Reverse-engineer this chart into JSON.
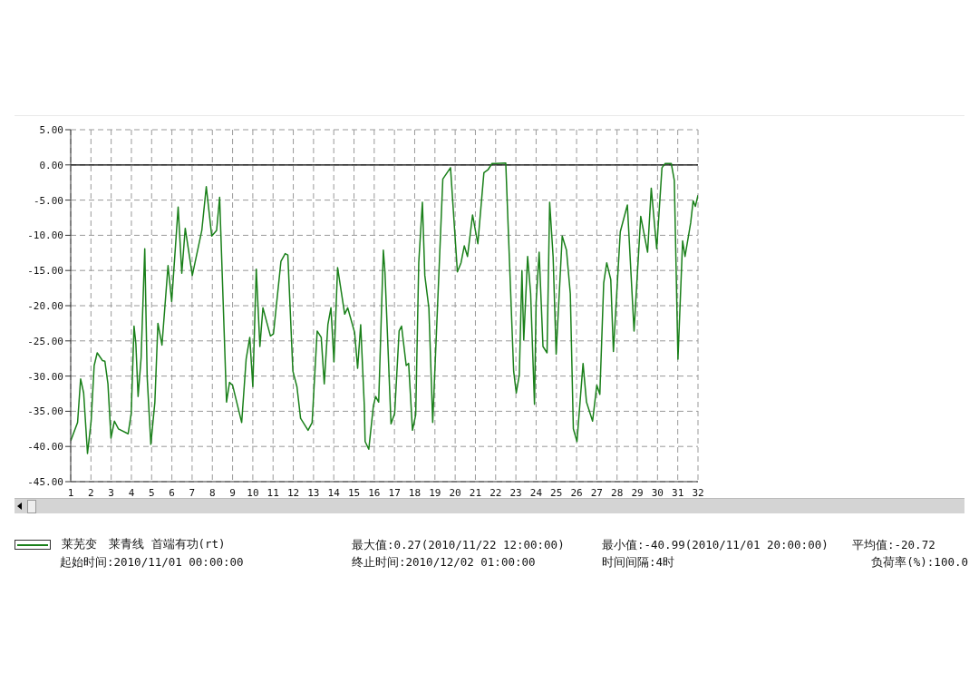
{
  "chart_data": {
    "type": "line",
    "x": [
      1.0,
      1.34,
      1.49,
      1.64,
      1.83,
      2.01,
      2.16,
      2.31,
      2.57,
      2.69,
      2.84,
      2.99,
      3.16,
      3.36,
      3.84,
      3.99,
      4.13,
      4.22,
      4.33,
      4.48,
      4.66,
      4.78,
      4.96,
      5.16,
      5.31,
      5.51,
      5.81,
      5.99,
      6.31,
      6.49,
      6.66,
      7.01,
      7.48,
      7.7,
      7.97,
      8.21,
      8.36,
      8.7,
      8.85,
      9.0,
      9.45,
      9.67,
      9.85,
      10.0,
      10.17,
      10.35,
      10.5,
      10.87,
      11.02,
      11.39,
      11.6,
      11.73,
      11.98,
      12.18,
      12.36,
      12.73,
      12.93,
      13.18,
      13.38,
      13.53,
      13.71,
      13.86,
      14.01,
      14.19,
      14.54,
      14.69,
      15.03,
      15.18,
      15.33,
      15.51,
      15.55,
      15.73,
      15.96,
      16.07,
      16.22,
      16.45,
      16.53,
      16.83,
      17.01,
      17.23,
      17.35,
      17.58,
      17.7,
      17.89,
      18.05,
      18.2,
      18.38,
      18.5,
      18.7,
      18.89,
      19.39,
      19.77,
      20.11,
      20.29,
      20.45,
      20.61,
      20.86,
      21.12,
      21.42,
      21.62,
      21.82,
      22.0,
      22.5,
      22.89,
      23.02,
      23.17,
      23.3,
      23.39,
      23.58,
      23.73,
      23.92,
      24.0,
      24.15,
      24.34,
      24.54,
      24.67,
      24.84,
      24.99,
      25.29,
      25.5,
      25.69,
      25.84,
      26.02,
      26.32,
      26.49,
      26.79,
      27.0,
      27.15,
      27.34,
      27.49,
      27.69,
      27.82,
      28.16,
      28.51,
      28.84,
      29.17,
      29.51,
      29.69,
      29.96,
      30.22,
      30.38,
      30.68,
      30.83,
      31.01,
      31.24,
      31.36,
      31.64,
      31.76,
      31.87,
      32.0
    ],
    "series": [
      {
        "name": "莱芜变　莱青线 首端有功(rt)",
        "color": "#1a801a",
        "values": [
          -39.2,
          -36.6,
          -30.4,
          -32.4,
          -40.99,
          -36.4,
          -28.5,
          -26.7,
          -27.8,
          -27.9,
          -31.1,
          -38.8,
          -36.4,
          -37.5,
          -38.2,
          -35.3,
          -22.9,
          -25.4,
          -32.9,
          -27.4,
          -11.9,
          -30.2,
          -39.7,
          -33.7,
          -22.5,
          -25.6,
          -14.3,
          -19.4,
          -6.0,
          -15.4,
          -9.0,
          -15.7,
          -9.3,
          -3.1,
          -10.1,
          -9.3,
          -4.6,
          -33.7,
          -30.9,
          -31.3,
          -36.6,
          -27.6,
          -24.5,
          -31.5,
          -14.8,
          -25.8,
          -20.3,
          -24.3,
          -24.0,
          -13.7,
          -12.6,
          -12.8,
          -29.3,
          -31.5,
          -36.0,
          -37.7,
          -36.6,
          -23.6,
          -24.5,
          -31.1,
          -22.7,
          -20.3,
          -28.0,
          -14.6,
          -21.2,
          -20.3,
          -23.8,
          -28.9,
          -22.7,
          -34.2,
          -39.3,
          -40.4,
          -34.2,
          -32.9,
          -33.7,
          -12.1,
          -15.2,
          -36.8,
          -35.3,
          -23.6,
          -22.9,
          -28.5,
          -28.2,
          -37.7,
          -35.5,
          -13.9,
          -5.3,
          -15.7,
          -20.3,
          -36.6,
          -2.0,
          -0.4,
          -15.2,
          -13.9,
          -11.5,
          -13.0,
          -7.1,
          -11.2,
          -1.1,
          -0.7,
          0.2,
          0.2,
          0.27,
          -29.3,
          -32.4,
          -29.8,
          -15.0,
          -24.9,
          -13.0,
          -18.3,
          -34.0,
          -19.6,
          -12.4,
          -25.8,
          -26.7,
          -5.3,
          -13.0,
          -26.9,
          -10.1,
          -12.1,
          -18.3,
          -37.5,
          -39.3,
          -28.2,
          -33.7,
          -36.4,
          -31.3,
          -32.6,
          -16.8,
          -13.9,
          -16.3,
          -26.5,
          -9.5,
          -5.7,
          -23.6,
          -7.3,
          -12.4,
          -3.3,
          -11.9,
          -0.4,
          0.2,
          0.2,
          -2.2,
          -27.6,
          -10.8,
          -13.0,
          -8.2,
          -5.1,
          -5.9,
          -4.3
        ]
      }
    ],
    "xlim": [
      1,
      32
    ],
    "xticks": [
      1,
      2,
      3,
      4,
      5,
      6,
      7,
      8,
      9,
      10,
      11,
      12,
      13,
      14,
      15,
      16,
      17,
      18,
      19,
      20,
      21,
      22,
      23,
      24,
      25,
      26,
      27,
      28,
      29,
      30,
      31,
      32
    ],
    "ylim": [
      -45,
      5
    ],
    "yticks": [
      {
        "value": -45,
        "label": "-45.00"
      },
      {
        "value": -40,
        "label": "-40.00"
      },
      {
        "value": -35,
        "label": "-35.00"
      },
      {
        "value": -30,
        "label": "-30.00"
      },
      {
        "value": -25,
        "label": "-25.00"
      },
      {
        "value": -20,
        "label": "-20.00"
      },
      {
        "value": -15,
        "label": "-15.00"
      },
      {
        "value": -10,
        "label": "-10.00"
      },
      {
        "value": -5,
        "label": "-5.00"
      },
      {
        "value": 0,
        "label": "0.00"
      },
      {
        "value": 5,
        "label": "5.00"
      }
    ],
    "ref_lines": [
      {
        "axis": "y",
        "value": 0,
        "color": "#000000"
      }
    ],
    "grid": true,
    "legend": "bottom",
    "marker": "none",
    "line_style": "solid",
    "annotations": [
      "最大值:0.27(2010/11/22 12:00:00)",
      "最小值:-40.99(2010/11/01 20:00:00)",
      "平均值:-20.72",
      "起始时间:2010/11/01 00:00:00",
      "终止时间:2010/12/02 01:00:00",
      "时间间隔:4时",
      "负荷率(%):100.0"
    ]
  }
}
